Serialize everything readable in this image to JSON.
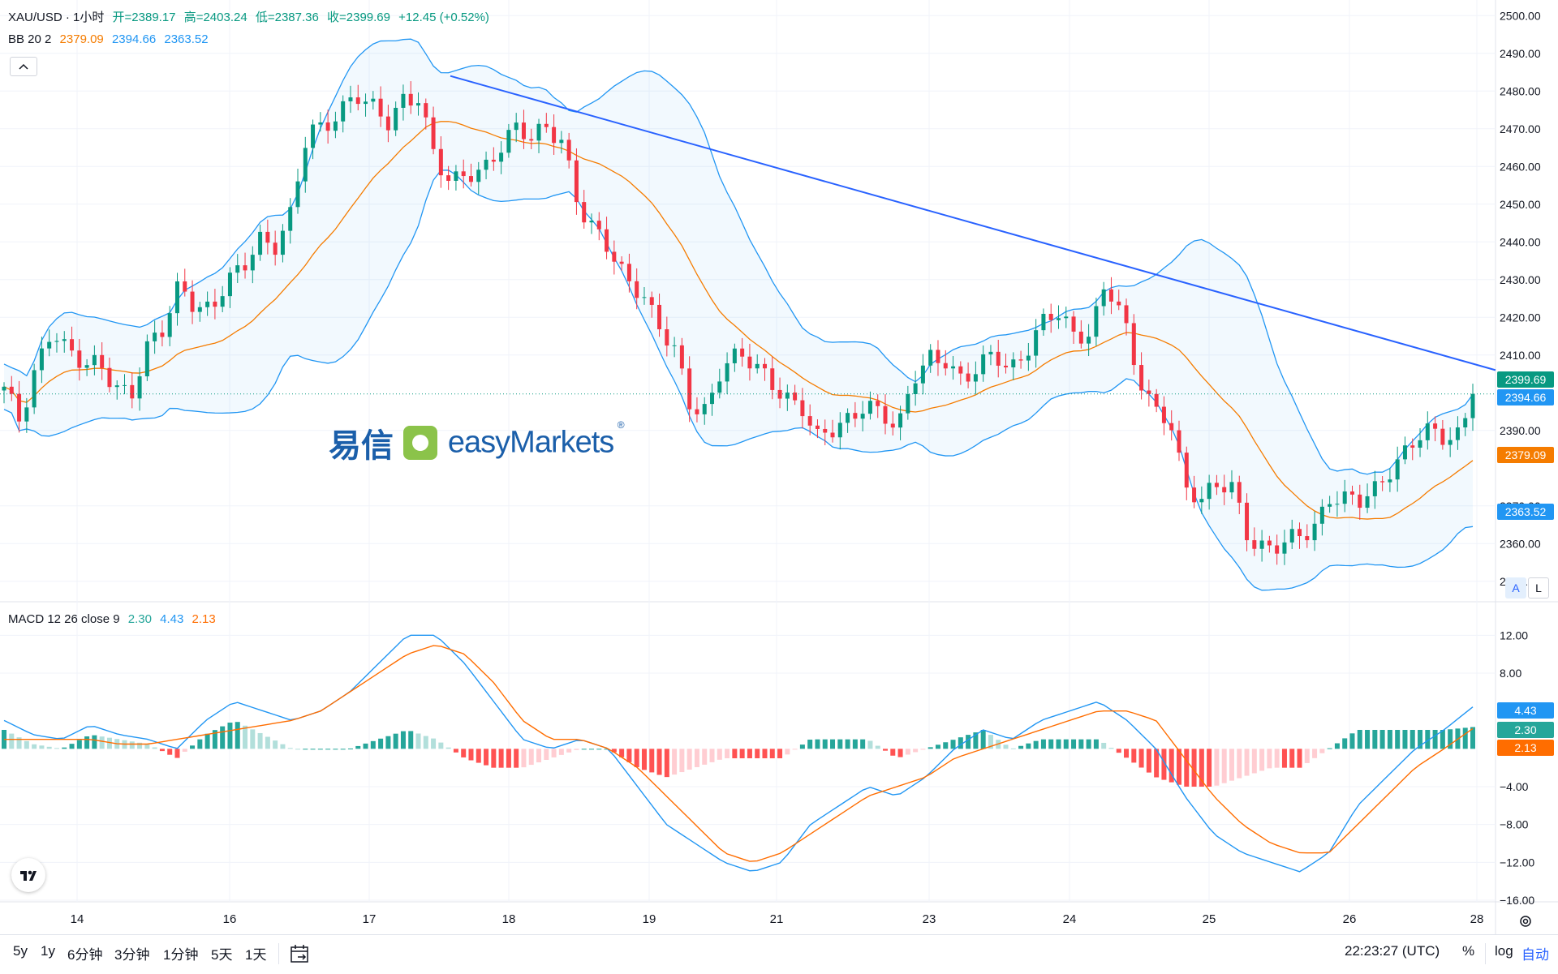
{
  "header": {
    "symbol": "XAU/USD · 1小时",
    "open": "开=2389.17",
    "high": "高=2403.24",
    "low": "低=2387.36",
    "close": "收=2399.69",
    "change": "+12.45 (+0.52%)",
    "bb_label": "BB 20 2",
    "bb_basis": "2379.09",
    "bb_upper": "2394.66",
    "bb_lower": "2363.52",
    "collapse_icon": "chevron-up-icon"
  },
  "watermark": {
    "cn": "易信",
    "en": "easyMarkets",
    "reg": "®"
  },
  "macd_header": {
    "label": "MACD 12 26 close 9",
    "hist": "2.30",
    "macd": "4.43",
    "signal": "2.13"
  },
  "price_axis": [
    "2500.00",
    "2490.00",
    "2480.00",
    "2470.00",
    "2460.00",
    "2450.00",
    "2440.00",
    "2430.00",
    "2420.00",
    "2410.00",
    "2390.00",
    "2370.00",
    "2360.00",
    "2350.00"
  ],
  "macd_axis": [
    "12.00",
    "8.00",
    "−4.00",
    "−8.00",
    "−12.00",
    "−16.00"
  ],
  "price_tags": {
    "last": "2399.69",
    "upper": "2394.66",
    "basis": "2379.09",
    "lower": "2363.52"
  },
  "macd_tags": {
    "macd": "4.43",
    "hist": "2.30",
    "signal": "2.13"
  },
  "scale_buttons": {
    "auto": "A",
    "log": "L"
  },
  "time_axis": [
    "14",
    "16",
    "17",
    "18",
    "19",
    "21",
    "23",
    "24",
    "25",
    "26",
    "28"
  ],
  "toolbar": {
    "ranges": [
      "5y",
      "1y",
      "6分钟",
      "3分钟",
      "1分钟",
      "5天",
      "1天"
    ],
    "time": "22:23:27 (UTC)",
    "percent": "%",
    "log": "log",
    "auto": "自动"
  },
  "colors": {
    "up": "#089981",
    "down": "#f23645",
    "basis": "#f57c00",
    "band": "#2196f3",
    "trend": "#2962ff",
    "macd_line": "#2196f3",
    "signal_line": "#ff6d00"
  },
  "chart_data": [
    {
      "type": "candlestick",
      "title": "XAU/USD 1小时",
      "ylim": [
        2345,
        2502
      ],
      "x_ticks": [
        "14",
        "16",
        "17",
        "18",
        "19",
        "21",
        "23",
        "24",
        "25",
        "26",
        "28"
      ],
      "close_path": [
        2400,
        2392,
        2408,
        2418,
        2410,
        2406,
        2408,
        2403,
        2400,
        2411,
        2416,
        2430,
        2424,
        2422,
        2428,
        2433,
        2442,
        2440,
        2447,
        2468,
        2470,
        2476,
        2480,
        2475,
        2470,
        2478,
        2480,
        2462,
        2454,
        2457,
        2460,
        2466,
        2470,
        2466,
        2470,
        2468,
        2450,
        2442,
        2436,
        2430,
        2428,
        2418,
        2410,
        2395,
        2396,
        2409,
        2410,
        2406,
        2402,
        2400,
        2397,
        2387,
        2389,
        2393,
        2399,
        2395,
        2389,
        2403,
        2410,
        2410,
        2403,
        2405,
        2410,
        2407,
        2412,
        2418,
        2420,
        2415,
        2417,
        2430,
        2420,
        2403,
        2396,
        2395,
        2375,
        2370,
        2375,
        2376,
        2362,
        2358,
        2358,
        2362,
        2365,
        2373,
        2371,
        2370,
        2375,
        2382,
        2386,
        2389,
        2387,
        2389,
        2399.69
      ],
      "series": [
        {
          "name": "BB 20 2",
          "role": "basis",
          "last": 2379.09
        },
        {
          "name": "BB 20 2",
          "role": "upper",
          "last": 2394.66
        },
        {
          "name": "BB 20 2",
          "role": "lower",
          "last": 2363.52
        }
      ],
      "trendline": {
        "from_price": 2484,
        "to_price": 2406
      }
    },
    {
      "type": "bar",
      "title": "MACD 12 26 close 9",
      "ylim": [
        -16,
        14
      ],
      "series": [
        {
          "name": "MACD",
          "last": 4.43
        },
        {
          "name": "Signal",
          "last": 2.13
        },
        {
          "name": "Histogram",
          "last": 2.3
        }
      ],
      "macd_path": [
        3,
        1.5,
        1,
        2.5,
        1.5,
        1,
        0,
        3,
        5,
        4,
        3,
        4,
        6,
        9,
        12,
        12,
        9,
        5,
        1,
        0,
        1,
        0,
        -4,
        -8,
        -10,
        -12,
        -13,
        -12,
        -8,
        -6,
        -4,
        -5,
        -3,
        0,
        2,
        1,
        3,
        4,
        5,
        3,
        0,
        -5,
        -9,
        -11,
        -12,
        -13,
        -11,
        -6,
        -3,
        0,
        2,
        4.43
      ],
      "signal_path": [
        1,
        1,
        1,
        1,
        0.5,
        0.5,
        1,
        1.5,
        2,
        2.5,
        3,
        4,
        6,
        8,
        10,
        11,
        10,
        7,
        3,
        1,
        1,
        0,
        -2,
        -5,
        -8,
        -11,
        -12,
        -11,
        -9,
        -7,
        -5,
        -4,
        -3,
        -1,
        0,
        1,
        2,
        3,
        4,
        4,
        3,
        -1,
        -5,
        -8,
        -10,
        -11,
        -11,
        -8,
        -5,
        -2,
        0,
        2.13
      ]
    }
  ]
}
